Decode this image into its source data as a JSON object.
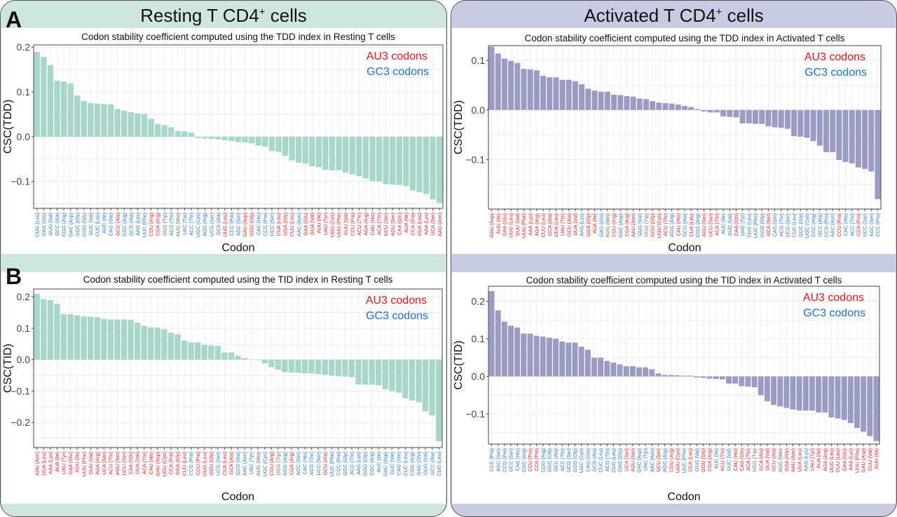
{
  "figure": {
    "panel_letter_a": "A",
    "panel_letter_b": "B",
    "resting_title": "Resting T CD4",
    "activated_title": "Activated T CD4",
    "title_superscript": "+",
    "title_suffix": " cells",
    "colors": {
      "resting_bar": "#a9d6cb",
      "activated_bar": "#9a9cc4",
      "resting_bg": "#cfe6df",
      "activated_bg": "#c9cbe2",
      "au3": "#e8141c",
      "gc3": "#1e6fd9",
      "neutral": "#666666"
    },
    "legend": {
      "au3": "AU3 codons",
      "gc3": "GC3 codons"
    }
  },
  "chart_data": [
    {
      "id": "resting_tdd",
      "type": "bar",
      "title": "Codon stability coefficient computed using the TDD index in Resting T cells",
      "xlabel": "Codon",
      "ylabel": "CSC(TDD)",
      "ylim": [
        -0.16,
        0.205
      ],
      "yticks": [
        -0.1,
        0.0,
        0.1,
        0.2
      ],
      "ytick_labels": [
        "−0.1",
        "0.0",
        "0.1",
        "0.2"
      ],
      "grid": true,
      "legend_position": "top-right",
      "categories": [
        "CUG (Leu)",
        "GAG (Glu)",
        "GUG (Val)",
        "GCC (Ala)",
        "CGG (Arg)",
        "GAC (Asp)",
        "GGC (Gly)",
        "GGG (Gly)",
        "GUC (Val)",
        "CUC (Leu)",
        "AUC (Ile)",
        "CAG (Gln)",
        "GCU (Ala)",
        "CGC (Arg)",
        "GCG (Ala)",
        "AAG (Lys)",
        "UUC (Phe)",
        "CGU (Arg)",
        "CGA (Arg)",
        "UGG (Trp)",
        "ACG (Thr)",
        "AUG (Met)",
        "UAC (Tyr)",
        "ACC (Thr)",
        "UGC (Cys)",
        "AGG (Arg)",
        "UCG (Ser)",
        "GCA (Ala)",
        "UUG (Leu)",
        "CCC (Pro)",
        "AGC (Ser)",
        "GAU (Asp)",
        "GGU (Gly)",
        "CAC (His)",
        "CCG (Pro)",
        "UCC (Ser)",
        "CUA (Leu)",
        "GGA (Gly)",
        "CUU (Leu)",
        "AAC (Asn)",
        "GAA (Glu)",
        "GUA (Val)",
        "AUU (Ile)",
        "UAU (Tyr)",
        "UGU (Cys)",
        "UUU (Phe)",
        "GUU (Val)",
        "CCU (Pro)",
        "ACU (Thr)",
        "AGA (Arg)",
        "CAU (His)",
        "ACA (Thr)",
        "UCU (Ser)",
        "AGU (Ser)",
        "CAA (Gln)",
        "AUA (Ile)",
        "CCA (Pro)",
        "UUA (Leu)",
        "AAA (Lys)",
        "UCA (Ser)",
        "AAU (Asn)"
      ],
      "classes": [
        "g",
        "g",
        "g",
        "g",
        "g",
        "g",
        "g",
        "g",
        "g",
        "g",
        "g",
        "g",
        "a",
        "g",
        "g",
        "g",
        "g",
        "a",
        "a",
        "n",
        "g",
        "n",
        "g",
        "g",
        "g",
        "g",
        "g",
        "g",
        "a",
        "g",
        "g",
        "a",
        "a",
        "g",
        "g",
        "g",
        "a",
        "a",
        "a",
        "g",
        "a",
        "a",
        "a",
        "a",
        "a",
        "a",
        "a",
        "a",
        "a",
        "a",
        "a",
        "a",
        "a",
        "a",
        "a",
        "a",
        "a",
        "a",
        "a",
        "a",
        "a"
      ],
      "values": [
        0.189,
        0.178,
        0.16,
        0.125,
        0.123,
        0.119,
        0.092,
        0.08,
        0.075,
        0.074,
        0.073,
        0.072,
        0.062,
        0.058,
        0.055,
        0.052,
        0.051,
        0.04,
        0.029,
        0.026,
        0.021,
        0.013,
        0.012,
        0.009,
        -0.003,
        -0.004,
        -0.005,
        -0.006,
        -0.008,
        -0.01,
        -0.012,
        -0.013,
        -0.015,
        -0.02,
        -0.022,
        -0.032,
        -0.034,
        -0.043,
        -0.053,
        -0.058,
        -0.06,
        -0.066,
        -0.068,
        -0.074,
        -0.075,
        -0.075,
        -0.08,
        -0.084,
        -0.088,
        -0.093,
        -0.099,
        -0.1,
        -0.106,
        -0.107,
        -0.108,
        -0.11,
        -0.12,
        -0.124,
        -0.128,
        -0.14,
        -0.148
      ]
    },
    {
      "id": "resting_tid",
      "type": "bar",
      "title": "Codon stability coefficient computed using the TID index in Resting T cells",
      "xlabel": "Codon",
      "ylabel": "CSC(TID)",
      "ylim": [
        -0.28,
        0.225
      ],
      "yticks": [
        -0.2,
        -0.1,
        0.0,
        0.1,
        0.2
      ],
      "ytick_labels": [
        "−0.2",
        "−0.1",
        "0.0",
        "0.1",
        "0.2"
      ],
      "grid": true,
      "legend_position": "top-right",
      "categories": [
        "AAU (Asn)",
        "UUA (Leu)",
        "AAA (Lys)",
        "AUA (Ile)",
        "UAU (Tyr)",
        "GAA (Glu)",
        "AUU (Ile)",
        "UUU (Phe)",
        "GUU (Val)",
        "AGA (Arg)",
        "UCA (Ser)",
        "ACU (Thr)",
        "AGU (Ser)",
        "UCU (Ser)",
        "CAA (Gln)",
        "GUA (Val)",
        "ACA (Thr)",
        "CAU (His)",
        "GAU (Asp)",
        "UGU (Cys)",
        "CCA (Pro)",
        "GGA (Gly)",
        "CUU (Leu)",
        "CCG (Pro)",
        "CCU (Pro)",
        "UUG (Leu)",
        "GGU (Gly)",
        "UCG (Ser)",
        "CUA (Leu)",
        "GCA (Ala)",
        "GCG (Ala)",
        "AAC (Asn)",
        "UAC (Tyr)",
        "AUG (Met)",
        "UGC (Cys)",
        "CGU (Arg)",
        "UGG (Trp)",
        "AGG (Arg)",
        "CGA (Arg)",
        "AGC (Ser)",
        "CAC (His)",
        "ACG (Thr)",
        "UCC (Ser)",
        "GCU (Ala)",
        "UUC (Phe)",
        "CCC (Pro)",
        "GGC (Gly)",
        "ACC (Thr)",
        "AAG (Lys)",
        "GGG (Gly)",
        "CGC (Arg)",
        "AUC (Ile)",
        "GAC (Asp)",
        "GUC (Val)",
        "CAG (Gln)",
        "CUC (Leu)",
        "CGG (Arg)",
        "GAG (Glu)",
        "GUG (Val)",
        "GCC (Ala)",
        "CUG (Leu)"
      ],
      "classes": [
        "a",
        "a",
        "a",
        "a",
        "a",
        "a",
        "a",
        "a",
        "a",
        "a",
        "a",
        "a",
        "a",
        "a",
        "a",
        "a",
        "a",
        "a",
        "a",
        "a",
        "a",
        "a",
        "a",
        "g",
        "a",
        "a",
        "a",
        "g",
        "a",
        "a",
        "g",
        "g",
        "g",
        "n",
        "g",
        "a",
        "n",
        "g",
        "a",
        "g",
        "g",
        "g",
        "g",
        "a",
        "g",
        "g",
        "g",
        "g",
        "g",
        "g",
        "g",
        "g",
        "g",
        "g",
        "g",
        "g",
        "g",
        "g",
        "g",
        "g",
        "g"
      ],
      "values": [
        0.21,
        0.193,
        0.19,
        0.178,
        0.145,
        0.145,
        0.141,
        0.138,
        0.137,
        0.135,
        0.13,
        0.128,
        0.128,
        0.128,
        0.127,
        0.118,
        0.108,
        0.103,
        0.102,
        0.097,
        0.086,
        0.081,
        0.061,
        0.055,
        0.055,
        0.047,
        0.045,
        0.044,
        0.023,
        0.023,
        0.013,
        0.005,
        0.0,
        -0.001,
        -0.012,
        -0.024,
        -0.032,
        -0.04,
        -0.041,
        -0.042,
        -0.043,
        -0.044,
        -0.046,
        -0.048,
        -0.051,
        -0.053,
        -0.054,
        -0.056,
        -0.079,
        -0.08,
        -0.08,
        -0.082,
        -0.094,
        -0.1,
        -0.105,
        -0.123,
        -0.13,
        -0.136,
        -0.165,
        -0.178,
        -0.26
      ]
    },
    {
      "id": "activated_tdd",
      "type": "bar",
      "title": "Codon stability coefficient computed using the TDD index in Activated T cells",
      "xlabel": "Codon",
      "ylabel": "CSC(TDD)",
      "ylim": [
        -0.2,
        0.13
      ],
      "yticks": [
        -0.1,
        0.0,
        0.1
      ],
      "ytick_labels": [
        "−0.1",
        "0.0",
        "0.1"
      ],
      "grid": true,
      "legend_position": "top-right",
      "categories": [
        "GAU (Asp)",
        "AUU (Ile)",
        "GAA (Glu)",
        "UUG (Leu)",
        "GUU (Val)",
        "UUU (Phe)",
        "AAA (Lys)",
        "AGA (Arg)",
        "CUU (Leu)",
        "GCA (Ala)",
        "UUA (Leu)",
        "UAU (Tyr)",
        "GCU (Ala)",
        "GUA (Val)",
        "AAG (Lys)",
        "GGA (Gly)",
        "AUA (Ile)",
        "GAG (Glu)",
        "AUG (Met)",
        "CGU (Arg)",
        "GAC (Asp)",
        "CGA (Arg)",
        "AAU (Asn)",
        "GUG (Val)",
        "UGG (Trp)",
        "GGU (Gly)",
        "UGU (Cys)",
        "ACU (Thr)",
        "AGG (Arg)",
        "CAU (His)",
        "GCG (Ala)",
        "CUA (Leu)",
        "CGG (Arg)",
        "AGU (Ser)",
        "UCU (Ser)",
        "ACA (Thr)",
        "AUC (Ile)",
        "GUC (Val)",
        "CAA (Gln)",
        "UAC (Tyr)",
        "CUG (Leu)",
        "UUC (Phe)",
        "GGG (Gly)",
        "UCA (Ser)",
        "CAG (Gln)",
        "ACG (Thr)",
        "UCG (Ser)",
        "CUC (Leu)",
        "GGC (Gly)",
        "UGC (Cys)",
        "CGC (Arg)",
        "GCC (Ala)",
        "CCG (Pro)",
        "AAC (Asn)",
        "CCU (Pro)",
        "CAC (His)",
        "ACC (Thr)",
        "CCA (Pro)",
        "UCC (Ser)",
        "AGC (Ser)",
        "CCC (Pro)"
      ],
      "classes": [
        "a",
        "a",
        "a",
        "a",
        "a",
        "a",
        "a",
        "a",
        "a",
        "a",
        "a",
        "a",
        "a",
        "a",
        "g",
        "a",
        "a",
        "g",
        "n",
        "a",
        "g",
        "a",
        "a",
        "g",
        "n",
        "a",
        "a",
        "a",
        "g",
        "a",
        "g",
        "a",
        "g",
        "a",
        "a",
        "a",
        "g",
        "g",
        "a",
        "g",
        "g",
        "g",
        "g",
        "a",
        "g",
        "g",
        "g",
        "g",
        "g",
        "g",
        "g",
        "g",
        "g",
        "g",
        "a",
        "g",
        "g",
        "a",
        "g",
        "g",
        "g"
      ],
      "values": [
        0.128,
        0.114,
        0.104,
        0.099,
        0.095,
        0.083,
        0.082,
        0.08,
        0.069,
        0.066,
        0.066,
        0.061,
        0.061,
        0.058,
        0.052,
        0.043,
        0.039,
        0.037,
        0.037,
        0.031,
        0.03,
        0.028,
        0.027,
        0.023,
        0.022,
        0.018,
        0.015,
        0.014,
        0.013,
        0.011,
        0.008,
        0.006,
        0.002,
        -0.003,
        -0.005,
        -0.005,
        -0.013,
        -0.014,
        -0.015,
        -0.027,
        -0.027,
        -0.028,
        -0.028,
        -0.033,
        -0.035,
        -0.036,
        -0.038,
        -0.053,
        -0.054,
        -0.056,
        -0.063,
        -0.072,
        -0.085,
        -0.085,
        -0.101,
        -0.105,
        -0.108,
        -0.116,
        -0.119,
        -0.124,
        -0.18
      ]
    },
    {
      "id": "activated_tid",
      "type": "bar",
      "title": "Codon stability coefficient computed using the TID index in Activated T cells",
      "xlabel": "Codon",
      "ylabel": "CSC(TID)",
      "ylim": [
        -0.18,
        0.24
      ],
      "yticks": [
        -0.1,
        0.0,
        0.1,
        0.2
      ],
      "ytick_labels": [
        "−0.1",
        "0.0",
        "0.1",
        "0.2"
      ],
      "grid": true,
      "legend_position": "top-right",
      "categories": [
        "CCC (Pro)",
        "AGC (Ser)",
        "CCG (Pro)",
        "UCC (Ser)",
        "CAC (His)",
        "CGC (Arg)",
        "CCU (Pro)",
        "CCA (Pro)",
        "CGG (Arg)",
        "GGC (Gly)",
        "GCC (Ala)",
        "ACC (Thr)",
        "UCG (Ser)",
        "GGG (Gly)",
        "UGC (Cys)",
        "CAG (Gln)",
        "GCG (Ala)",
        "CUC (Leu)",
        "ACG (Thr)",
        "CUG (Leu)",
        "GAG (Glu)",
        "UCA (Ser)",
        "AGU (Ser)",
        "GAC (Asp)",
        "UAC (Tyr)",
        "AAC (Asn)",
        "UCU (Ser)",
        "AGG (Arg)",
        "CGU (Arg)",
        "UGU (Cys)",
        "UUC (Phe)",
        "CUA (Leu)",
        "GUG (Val)",
        "GGU (Gly)",
        "CGA (Arg)",
        "AUC (Ile)",
        "ACU (Thr)",
        "GUC (Val)",
        "CAU (His)",
        "CAA (Gln)",
        "ACA (Thr)",
        "UGG (Trp)",
        "GCA (Ala)",
        "GUA (Val)",
        "GCU (Ala)",
        "AUG (Met)",
        "GGA (Gly)",
        "AAU (Asn)",
        "UUA (Leu)",
        "AAG (Lys)",
        "UAU (Tyr)",
        "AUA (Ile)",
        "AGA (Arg)",
        "UUG (Leu)",
        "CUU (Leu)",
        "GAA (Glu)",
        "AAA (Lys)",
        "UUU (Phe)",
        "GAU (Asp)",
        "GUU (Val)",
        "AUU (Ile)"
      ],
      "classes": [
        "g",
        "g",
        "g",
        "g",
        "g",
        "g",
        "a",
        "a",
        "g",
        "g",
        "g",
        "g",
        "g",
        "g",
        "g",
        "g",
        "g",
        "g",
        "g",
        "g",
        "g",
        "a",
        "a",
        "g",
        "g",
        "g",
        "a",
        "g",
        "a",
        "a",
        "g",
        "a",
        "g",
        "a",
        "a",
        "g",
        "a",
        "g",
        "a",
        "a",
        "a",
        "n",
        "a",
        "a",
        "a",
        "n",
        "a",
        "a",
        "a",
        "g",
        "a",
        "a",
        "a",
        "a",
        "a",
        "a",
        "a",
        "a",
        "a",
        "a",
        "a"
      ],
      "values": [
        0.227,
        0.176,
        0.146,
        0.135,
        0.13,
        0.114,
        0.114,
        0.108,
        0.106,
        0.103,
        0.1,
        0.093,
        0.09,
        0.09,
        0.079,
        0.071,
        0.05,
        0.05,
        0.041,
        0.037,
        0.032,
        0.027,
        0.027,
        0.024,
        0.024,
        0.019,
        0.008,
        0.004,
        0.004,
        0.003,
        0.002,
        0.002,
        -0.003,
        -0.004,
        -0.006,
        -0.007,
        -0.008,
        -0.019,
        -0.019,
        -0.026,
        -0.027,
        -0.029,
        -0.05,
        -0.066,
        -0.076,
        -0.08,
        -0.084,
        -0.088,
        -0.091,
        -0.091,
        -0.091,
        -0.096,
        -0.096,
        -0.109,
        -0.112,
        -0.116,
        -0.124,
        -0.137,
        -0.147,
        -0.159,
        -0.172
      ]
    }
  ]
}
